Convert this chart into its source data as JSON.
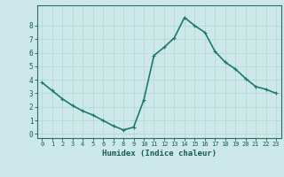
{
  "x": [
    0,
    1,
    2,
    3,
    4,
    5,
    6,
    7,
    8,
    9,
    10,
    11,
    12,
    13,
    14,
    15,
    16,
    17,
    18,
    19,
    20,
    21,
    22,
    23
  ],
  "y": [
    3.8,
    3.2,
    2.6,
    2.1,
    1.7,
    1.4,
    1.0,
    0.6,
    0.3,
    0.5,
    2.5,
    5.8,
    6.4,
    7.1,
    8.6,
    8.0,
    7.5,
    6.1,
    5.3,
    4.8,
    4.1,
    3.5,
    3.3,
    3.0
  ],
  "line_color": "#1a7a6e",
  "marker": "+",
  "marker_size": 3,
  "xlabel": "Humidex (Indice chaleur)",
  "xlim": [
    -0.5,
    23.5
  ],
  "ylim": [
    -0.3,
    9.5
  ],
  "xticks": [
    0,
    1,
    2,
    3,
    4,
    5,
    6,
    7,
    8,
    9,
    10,
    11,
    12,
    13,
    14,
    15,
    16,
    17,
    18,
    19,
    20,
    21,
    22,
    23
  ],
  "yticks": [
    0,
    1,
    2,
    3,
    4,
    5,
    6,
    7,
    8
  ],
  "bg_color": "#cce8e8",
  "grid_color": "#b8d8d0",
  "axis_color": "#2d6b65",
  "label_color": "#1a5a54",
  "tick_label_color": "#1a5a54",
  "line_width": 1.2
}
